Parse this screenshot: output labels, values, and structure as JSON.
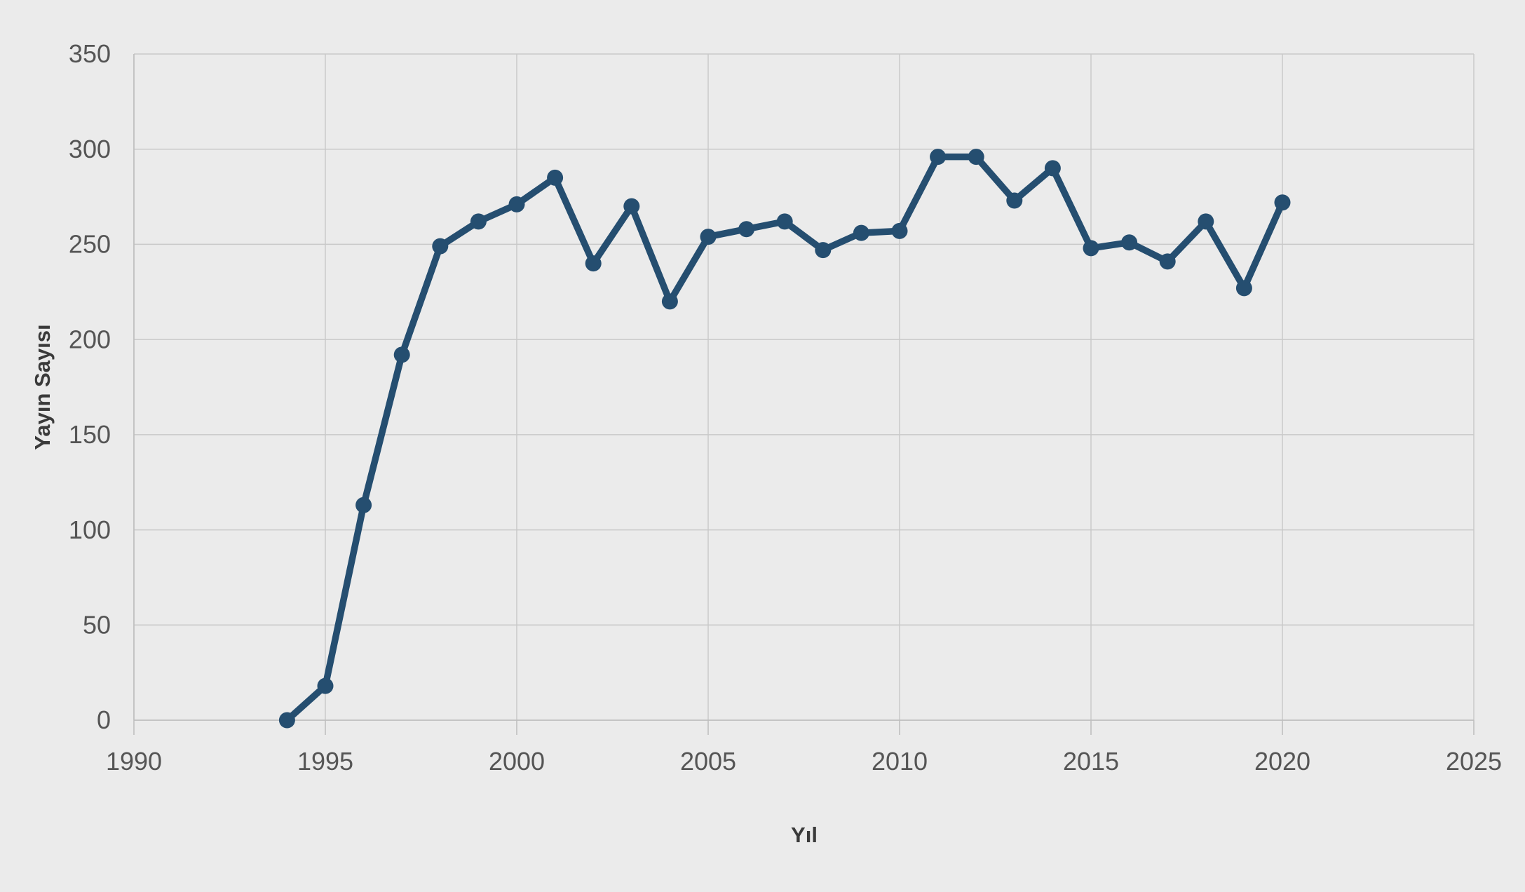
{
  "chart_data": {
    "type": "line",
    "title": "",
    "xlabel": "Yıl",
    "ylabel": "Yayın Sayısı",
    "x": [
      1994,
      1995,
      1996,
      1997,
      1998,
      1999,
      2000,
      2001,
      2002,
      2003,
      2004,
      2005,
      2006,
      2007,
      2008,
      2009,
      2010,
      2011,
      2012,
      2013,
      2014,
      2015,
      2016,
      2017,
      2018,
      2019,
      2020
    ],
    "values": [
      0,
      18,
      113,
      192,
      249,
      262,
      271,
      285,
      240,
      270,
      220,
      254,
      258,
      262,
      247,
      256,
      257,
      296,
      296,
      273,
      290,
      248,
      251,
      241,
      262,
      227,
      272
    ],
    "series_label": "Yayın Sayısı",
    "xlim": [
      1990,
      2025
    ],
    "ylim": [
      0,
      350
    ],
    "x_ticks": [
      1990,
      1995,
      2000,
      2005,
      2010,
      2015,
      2020,
      2025
    ],
    "y_ticks": [
      0,
      50,
      100,
      150,
      200,
      250,
      300,
      350
    ],
    "grid": true,
    "legend_position": "none",
    "marker": "circle"
  },
  "colors": {
    "background": "#ebebeb",
    "line": "#254e70",
    "marker": "#254e70",
    "gridline": "#c9c9c9",
    "axis_line": "#bdbdbd",
    "tick_label": "#555555",
    "axis_title": "#3a3a3a"
  }
}
